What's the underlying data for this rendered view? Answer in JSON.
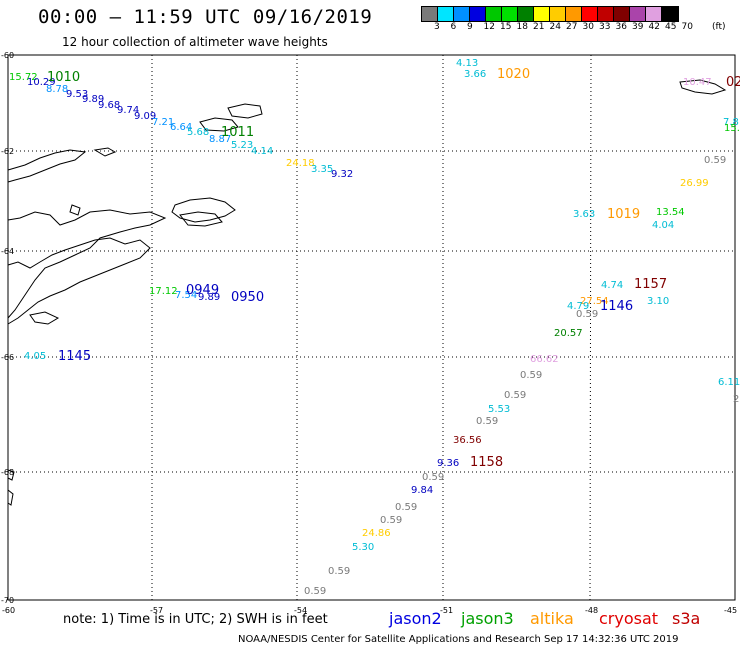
{
  "header": {
    "title": "00:00 – 11:59 UTC 09/16/2019",
    "subtitle": "12 hour collection of altimeter wave heights"
  },
  "colorbar": {
    "unit": "(ft)",
    "swatches": [
      "#7a7a7a",
      "#00e5ff",
      "#0090ff",
      "#0000e0",
      "#00c800",
      "#00e000",
      "#008000",
      "#ffff00",
      "#ffcc00",
      "#ff9900",
      "#ff0000",
      "#c00000",
      "#800000",
      "#aa44aa",
      "#e0a0e0",
      "#000000"
    ],
    "labels": [
      "3",
      "6",
      "9",
      "12",
      "15",
      "18",
      "21",
      "24",
      "27",
      "30",
      "33",
      "36",
      "39",
      "42",
      "45",
      "70"
    ]
  },
  "map": {
    "lat_labels": [
      "-60",
      "-62",
      "-64",
      "-66",
      "-68",
      "-70"
    ],
    "lon_labels": [
      "-60",
      "-57",
      "-54",
      "-51",
      "-48",
      "-45"
    ],
    "observations": [
      {
        "text": "4.13",
        "color": "#00bcd4"
      },
      {
        "text": "3.66",
        "color": "#00bcd4"
      },
      {
        "text": "15.72",
        "color": "#00c800"
      },
      {
        "text": "10.29",
        "color": "#0000c0"
      },
      {
        "text": "8.78",
        "color": "#0090ff"
      },
      {
        "text": "9.53",
        "color": "#0000c0"
      },
      {
        "text": "9.89",
        "color": "#0000c0"
      },
      {
        "text": "9.68",
        "color": "#0000c0"
      },
      {
        "text": "9.74",
        "color": "#0000c0"
      },
      {
        "text": "9.09",
        "color": "#0000c0"
      },
      {
        "text": "7.21",
        "color": "#0090ff"
      },
      {
        "text": "6.64",
        "color": "#0090ff"
      },
      {
        "text": "5.68",
        "color": "#00bcd4"
      },
      {
        "text": "8.87",
        "color": "#0090ff"
      },
      {
        "text": "5.23",
        "color": "#00bcd4"
      },
      {
        "text": "4.14",
        "color": "#00bcd4"
      },
      {
        "text": "24.18",
        "color": "#ffcc00"
      },
      {
        "text": "3.35",
        "color": "#00bcd4"
      },
      {
        "text": "9.32",
        "color": "#0000c0"
      },
      {
        "text": "0.59",
        "color": "#7a7a7a"
      },
      {
        "text": "26.99",
        "color": "#ffcc00"
      },
      {
        "text": "3.63",
        "color": "#00bcd4"
      },
      {
        "text": "13.54",
        "color": "#00c800"
      },
      {
        "text": "4.04",
        "color": "#00bcd4"
      },
      {
        "text": "4.74",
        "color": "#00bcd4"
      },
      {
        "text": "27.54",
        "color": "#ff9900"
      },
      {
        "text": "4.79",
        "color": "#00bcd4"
      },
      {
        "text": "0.59",
        "color": "#7a7a7a"
      },
      {
        "text": "3.10",
        "color": "#00bcd4"
      },
      {
        "text": "20.57",
        "color": "#008000"
      },
      {
        "text": "17.12",
        "color": "#00c800"
      },
      {
        "text": "7.54",
        "color": "#0090ff"
      },
      {
        "text": "9.89",
        "color": "#0000c0"
      },
      {
        "text": "4.05",
        "color": "#00bcd4"
      },
      {
        "text": "66.62",
        "color": "#e0a0e0"
      },
      {
        "text": "0.59",
        "color": "#7a7a7a"
      },
      {
        "text": "0.59",
        "color": "#7a7a7a"
      },
      {
        "text": "5.53",
        "color": "#00bcd4"
      },
      {
        "text": "0.59",
        "color": "#7a7a7a"
      },
      {
        "text": "36.56",
        "color": "#800000"
      },
      {
        "text": "9.36",
        "color": "#0000c0"
      },
      {
        "text": "0.59",
        "color": "#7a7a7a"
      },
      {
        "text": "9.84",
        "color": "#0000c0"
      },
      {
        "text": "0.59",
        "color": "#7a7a7a"
      },
      {
        "text": "0.59",
        "color": "#7a7a7a"
      },
      {
        "text": "24.86",
        "color": "#ffcc00"
      },
      {
        "text": "5.30",
        "color": "#00bcd4"
      },
      {
        "text": "0.59",
        "color": "#7a7a7a"
      },
      {
        "text": "0.59",
        "color": "#7a7a7a"
      },
      {
        "text": "6.11",
        "color": "#00bcd4"
      },
      {
        "text": "2",
        "color": "#7a7a7a"
      },
      {
        "text": "7.8",
        "color": "#00bcd4"
      },
      {
        "text": "15.",
        "color": "#00c800"
      },
      {
        "text": "10.47",
        "color": "#e0a0e0"
      }
    ],
    "time_labels": [
      {
        "text": "1010",
        "color": "#008000"
      },
      {
        "text": "1020",
        "color": "#ff9900"
      },
      {
        "text": "1011",
        "color": "#008000"
      },
      {
        "text": "1019",
        "color": "#ff9900"
      },
      {
        "text": "1157",
        "color": "#800000"
      },
      {
        "text": "1146",
        "color": "#0000c0"
      },
      {
        "text": "0949",
        "color": "#0000c0"
      },
      {
        "text": "0950",
        "color": "#0000c0"
      },
      {
        "text": "1145",
        "color": "#0000c0"
      },
      {
        "text": "1158",
        "color": "#800000"
      },
      {
        "text": "02",
        "color": "#800000"
      }
    ]
  },
  "footer": {
    "note": "note: 1) Time is in UTC; 2) SWH is in feet",
    "legend": [
      {
        "label": "jason2",
        "color": "#0000e0"
      },
      {
        "label": "jason3",
        "color": "#00a000"
      },
      {
        "label": "altika",
        "color": "#ff9900"
      },
      {
        "label": "cryosat",
        "color": "#e00000"
      },
      {
        "label": "s3a",
        "color": "#c00000"
      }
    ],
    "credit": "NOAA/NESDIS Center for Satellite Applications and Research    Sep 17 14:32:36 UTC 2019"
  }
}
